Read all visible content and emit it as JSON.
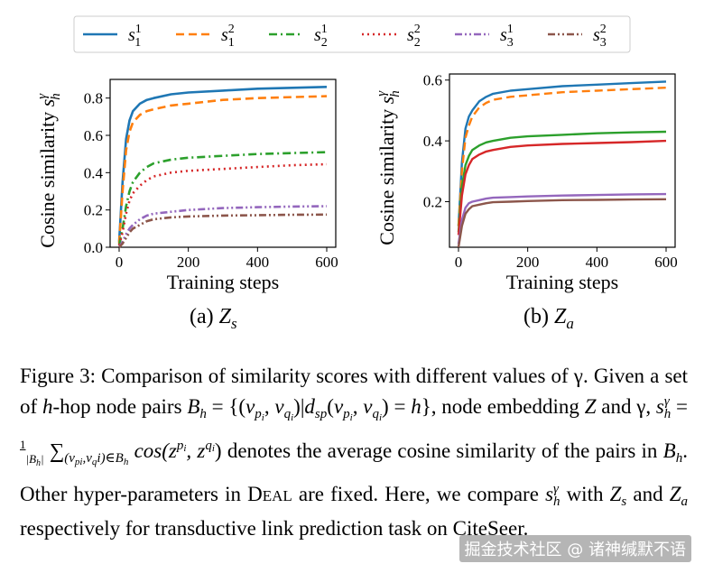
{
  "chart_data": [
    {
      "type": "line",
      "panel_label": "(a)",
      "embedding": "Z_s",
      "xlabel": "Training steps",
      "ylabel": "Cosine similarity s_h^γ",
      "xlim": [
        0,
        600
      ],
      "ylim": [
        0,
        0.9
      ],
      "xticks": [
        0,
        200,
        400,
        600
      ],
      "yticks": [
        0.0,
        0.2,
        0.4,
        0.6,
        0.8
      ],
      "ytick_labels": [
        "0.0",
        "0.2",
        "0.4",
        "0.6",
        "0.8"
      ],
      "grid": false,
      "legend_position": "top",
      "series": [
        {
          "name": "s_1^1",
          "color": "#1f77b4",
          "dash": "solid",
          "x": [
            0,
            10,
            20,
            30,
            40,
            60,
            80,
            100,
            150,
            200,
            300,
            400,
            500,
            600
          ],
          "values": [
            0.03,
            0.35,
            0.58,
            0.68,
            0.73,
            0.77,
            0.79,
            0.8,
            0.82,
            0.83,
            0.84,
            0.85,
            0.855,
            0.86
          ]
        },
        {
          "name": "s_1^2",
          "color": "#ff7f0e",
          "dash": "dashed",
          "x": [
            0,
            10,
            20,
            30,
            40,
            60,
            80,
            100,
            150,
            200,
            300,
            400,
            500,
            600
          ],
          "values": [
            0.02,
            0.3,
            0.52,
            0.62,
            0.67,
            0.71,
            0.73,
            0.74,
            0.76,
            0.77,
            0.79,
            0.8,
            0.805,
            0.81
          ]
        },
        {
          "name": "s_2^1",
          "color": "#2ca02c",
          "dash": "dashdot",
          "x": [
            0,
            10,
            20,
            30,
            40,
            60,
            80,
            100,
            150,
            200,
            300,
            400,
            500,
            600
          ],
          "values": [
            0.01,
            0.1,
            0.22,
            0.3,
            0.35,
            0.4,
            0.43,
            0.45,
            0.47,
            0.48,
            0.49,
            0.5,
            0.505,
            0.51
          ]
        },
        {
          "name": "s_2^2",
          "color": "#d62728",
          "dash": "dotted",
          "x": [
            0,
            10,
            20,
            30,
            40,
            60,
            80,
            100,
            150,
            200,
            300,
            400,
            500,
            600
          ],
          "values": [
            0.01,
            0.08,
            0.18,
            0.25,
            0.29,
            0.33,
            0.36,
            0.38,
            0.4,
            0.41,
            0.42,
            0.43,
            0.44,
            0.445
          ]
        },
        {
          "name": "s_3^1",
          "color": "#9467bd",
          "dash": "dashdotdot",
          "x": [
            0,
            10,
            20,
            30,
            40,
            60,
            80,
            100,
            150,
            200,
            300,
            400,
            500,
            600
          ],
          "values": [
            0.0,
            0.03,
            0.07,
            0.1,
            0.12,
            0.15,
            0.17,
            0.18,
            0.19,
            0.2,
            0.21,
            0.215,
            0.218,
            0.22
          ]
        },
        {
          "name": "s_3^2",
          "color": "#8c564b",
          "dash": "dashdotdot",
          "x": [
            0,
            10,
            20,
            30,
            40,
            60,
            80,
            100,
            150,
            200,
            300,
            400,
            500,
            600
          ],
          "values": [
            0.0,
            0.02,
            0.05,
            0.08,
            0.1,
            0.12,
            0.14,
            0.15,
            0.16,
            0.165,
            0.17,
            0.172,
            0.174,
            0.175
          ]
        }
      ]
    },
    {
      "type": "line",
      "panel_label": "(b)",
      "embedding": "Z_a",
      "xlabel": "Training steps",
      "ylabel": "Cosine similarity s_h^γ",
      "xlim": [
        0,
        600
      ],
      "ylim": [
        0.05,
        0.62
      ],
      "xticks": [
        0,
        200,
        400,
        600
      ],
      "yticks": [
        0.2,
        0.4,
        0.6
      ],
      "ytick_labels": [
        "0.2",
        "0.4",
        "0.6"
      ],
      "grid": false,
      "series": [
        {
          "name": "s_1^1",
          "color": "#1f77b4",
          "dash": "solid",
          "x": [
            0,
            10,
            20,
            30,
            40,
            60,
            80,
            100,
            150,
            200,
            300,
            400,
            500,
            600
          ],
          "values": [
            0.12,
            0.33,
            0.44,
            0.48,
            0.5,
            0.53,
            0.545,
            0.555,
            0.565,
            0.57,
            0.58,
            0.585,
            0.59,
            0.595
          ]
        },
        {
          "name": "s_1^2",
          "color": "#ff7f0e",
          "dash": "dashed",
          "x": [
            0,
            10,
            20,
            30,
            40,
            60,
            80,
            100,
            150,
            200,
            300,
            400,
            500,
            600
          ],
          "values": [
            0.12,
            0.3,
            0.41,
            0.45,
            0.48,
            0.51,
            0.525,
            0.535,
            0.545,
            0.55,
            0.56,
            0.565,
            0.57,
            0.575
          ]
        },
        {
          "name": "s_2^1",
          "color": "#2ca02c",
          "dash": "solid",
          "x": [
            0,
            10,
            20,
            30,
            40,
            60,
            80,
            100,
            150,
            200,
            300,
            400,
            500,
            600
          ],
          "values": [
            0.1,
            0.25,
            0.32,
            0.35,
            0.37,
            0.385,
            0.395,
            0.4,
            0.41,
            0.415,
            0.42,
            0.425,
            0.428,
            0.43
          ]
        },
        {
          "name": "s_2^2",
          "color": "#d62728",
          "dash": "solid",
          "x": [
            0,
            10,
            20,
            30,
            40,
            60,
            80,
            100,
            150,
            200,
            300,
            400,
            500,
            600
          ],
          "values": [
            0.09,
            0.22,
            0.29,
            0.32,
            0.34,
            0.355,
            0.365,
            0.37,
            0.38,
            0.385,
            0.39,
            0.393,
            0.396,
            0.4
          ]
        },
        {
          "name": "s_3^1",
          "color": "#9467bd",
          "dash": "solid",
          "x": [
            0,
            10,
            20,
            30,
            40,
            60,
            80,
            100,
            150,
            200,
            300,
            400,
            500,
            600
          ],
          "values": [
            0.06,
            0.14,
            0.18,
            0.195,
            0.2,
            0.205,
            0.21,
            0.213,
            0.215,
            0.217,
            0.22,
            0.222,
            0.224,
            0.225
          ]
        },
        {
          "name": "s_3^2",
          "color": "#8c564b",
          "dash": "solid",
          "x": [
            0,
            10,
            20,
            30,
            40,
            60,
            80,
            100,
            150,
            200,
            300,
            400,
            500,
            600
          ],
          "values": [
            0.05,
            0.12,
            0.16,
            0.175,
            0.185,
            0.19,
            0.195,
            0.198,
            0.2,
            0.202,
            0.205,
            0.206,
            0.207,
            0.208
          ]
        }
      ]
    }
  ],
  "caption": {
    "line1": "Figure 3:  Comparison of similarity scores with different values of γ.   Given a set of h-hop node pairs B",
    "line2": "= {(v",
    "mid1": ", v",
    "mid2": ")|d",
    "mid3": "(v",
    "mid4": ", v",
    "mid5": ") = h}, node embedding Z and γ, s",
    "line3_a": "=",
    "line3_b": "cos(z",
    "line3_c": ", z",
    "line3_d": ") denotes the average cosine similarity of the pairs in B",
    "line4": ". Other hyper-parameters in DEAL are fixed. Here, we compare s",
    "line5": " with Z",
    "line6": " and Z",
    "line7": " respectively for transductive link prediction task on CiteSeer."
  },
  "caption_parts": [
    "Figure 3:  Comparison of similarity scores with different values of γ.   Given a set of ",
    "h",
    "-hop node pairs ",
    "B",
    "h",
    " = {(",
    "v",
    "p",
    "i",
    ", ",
    "v",
    "q",
    "i",
    ")|",
    "d",
    "sp",
    "(",
    "v",
    "p",
    "i",
    ", ",
    "v",
    "q",
    "i",
    ") = ",
    "h",
    "}, node embedding ",
    "Z",
    " and γ, ",
    "s",
    "γ",
    "h",
    " = ",
    "1",
    "|B",
    "h",
    "|",
    " ∑",
    "(v",
    "p",
    "i",
    ",v",
    "q",
    "i",
    ")∈B",
    "h",
    " cos(z",
    "p",
    "i",
    ", z",
    "q",
    "i",
    ") denotes the average cosine similarity of the pairs in ",
    "B",
    "h",
    ". Other hyper-parameters in ",
    "D",
    "EAL",
    " are fixed. Here, we compare ",
    "s",
    "γ",
    "h",
    " with ",
    "Z",
    "s",
    " and ",
    "Z",
    "a",
    " respectively for transductive link prediction task on CiteSeer."
  ],
  "watermark": "掘金技术社区 @ 诸神缄默不语"
}
